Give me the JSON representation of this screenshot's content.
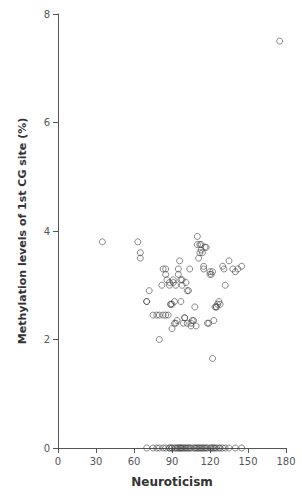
{
  "chart_data": {
    "type": "scatter",
    "xlabel": "Neuroticism",
    "ylabel": "Methylation levels of 1st CG site (%)",
    "xlim": [
      0,
      180
    ],
    "ylim": [
      0.0,
      8.0
    ],
    "xticks": [
      0,
      30,
      60,
      90,
      120,
      150,
      180
    ],
    "yticks": [
      0.0,
      2.0,
      4.0,
      6.0,
      8.0
    ],
    "grid": false,
    "marker": "circle",
    "series": [
      {
        "color": "#444444",
        "x": [
          35,
          63,
          65,
          65,
          70,
          70,
          72,
          75,
          78,
          80,
          80,
          82,
          83,
          83,
          85,
          85,
          85,
          86,
          87,
          88,
          88,
          89,
          89,
          90,
          90,
          91,
          91,
          92,
          92,
          93,
          93,
          94,
          95,
          95,
          96,
          97,
          97,
          98,
          98,
          99,
          100,
          100,
          101,
          102,
          102,
          103,
          104,
          105,
          105,
          106,
          107,
          108,
          109,
          110,
          110,
          111,
          112,
          112,
          113,
          113,
          114,
          115,
          115,
          116,
          117,
          118,
          119,
          120,
          120,
          121,
          122,
          122,
          123,
          124,
          125,
          125,
          126,
          127,
          128,
          130,
          131,
          132,
          135,
          138,
          140,
          142,
          145,
          175
        ],
        "values": [
          3.8,
          3.8,
          3.6,
          3.5,
          2.7,
          2.7,
          2.9,
          2.45,
          2.45,
          2.0,
          2.45,
          3.0,
          2.45,
          3.3,
          3.3,
          3.2,
          2.45,
          3.1,
          2.45,
          3.05,
          3.0,
          2.65,
          2.65,
          2.2,
          2.65,
          3.1,
          3.05,
          2.7,
          2.3,
          3.0,
          2.3,
          2.35,
          3.3,
          3.2,
          3.45,
          2.7,
          3.1,
          3.1,
          3.0,
          2.3,
          2.4,
          2.4,
          3.05,
          2.9,
          2.3,
          2.9,
          3.3,
          2.3,
          2.25,
          2.35,
          2.35,
          2.6,
          2.25,
          3.75,
          3.9,
          3.5,
          3.6,
          3.75,
          3.65,
          3.75,
          3.6,
          3.35,
          3.3,
          3.7,
          3.7,
          2.3,
          2.3,
          3.2,
          3.25,
          3.2,
          3.25,
          1.65,
          2.35,
          2.6,
          2.6,
          2.6,
          2.65,
          2.7,
          2.65,
          3.35,
          3.3,
          3.0,
          3.45,
          3.3,
          3.25,
          3.3,
          3.35,
          7.5
        ]
      },
      {
        "color": "#444444",
        "x": [
          70,
          75,
          78,
          80,
          83,
          85,
          88,
          88,
          90,
          90,
          92,
          93,
          94,
          95,
          96,
          97,
          97,
          98,
          99,
          100,
          101,
          102,
          103,
          104,
          105,
          107,
          108,
          109,
          110,
          111,
          112,
          113,
          114,
          115,
          116,
          117,
          118,
          120,
          121,
          122,
          123,
          124,
          125,
          127,
          128,
          130,
          132,
          135,
          140,
          145
        ],
        "values": [
          0,
          0,
          0,
          0,
          0,
          0,
          0,
          0,
          0,
          0,
          0,
          0,
          0,
          0,
          0,
          0,
          0,
          0,
          0,
          0,
          0,
          0,
          0,
          0,
          0,
          0,
          0,
          0,
          0,
          0,
          0,
          0,
          0,
          0,
          0,
          0,
          0,
          0,
          0,
          0,
          0,
          0,
          0,
          0,
          0,
          0,
          0,
          0,
          0,
          0
        ]
      }
    ]
  }
}
